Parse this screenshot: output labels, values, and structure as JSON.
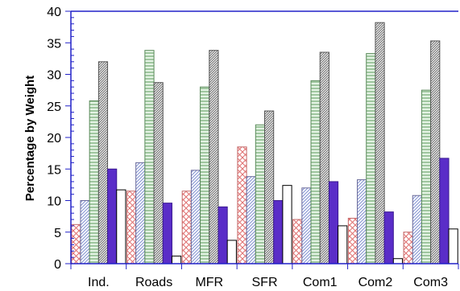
{
  "chart_data": {
    "type": "bar",
    "title": "",
    "xlabel": "",
    "ylabel": "Percentage by Weight",
    "ylim": [
      0,
      40
    ],
    "y_ticks": [
      0,
      5,
      10,
      15,
      20,
      25,
      30,
      35,
      40
    ],
    "categories": [
      "Ind.",
      "Roads",
      "MFR",
      "SFR",
      "Com1",
      "Com2",
      "Com3"
    ],
    "grid": false,
    "legend": "none",
    "series": [
      {
        "values": [
          6.2,
          11.5,
          11.5,
          18.5,
          7.0,
          7.2,
          5.0
        ],
        "fill": "#ffffff",
        "stroke": "#c46a6a",
        "pattern": "crosshatch",
        "pattern_color": "#e07070"
      },
      {
        "values": [
          10.0,
          16.0,
          14.8,
          13.8,
          12.0,
          13.3,
          10.8
        ],
        "fill": "#ffffff",
        "stroke": "#6a6a9a",
        "pattern": "diagonal",
        "pattern_color": "#7f8fd0"
      },
      {
        "values": [
          25.8,
          33.8,
          28.0,
          22.0,
          29.0,
          33.3,
          27.5
        ],
        "fill": "#e4f3e4",
        "stroke": "#5a8a5a",
        "pattern": "horizontal",
        "pattern_color": "#5a9a5a"
      },
      {
        "values": [
          32.0,
          28.7,
          33.8,
          24.2,
          33.5,
          38.2,
          35.3
        ],
        "fill": "#ffffff",
        "stroke": "#555555",
        "pattern": "diagonal-dense",
        "pattern_color": "#666666"
      },
      {
        "values": [
          15.0,
          9.6,
          9.0,
          10.0,
          13.0,
          8.2,
          16.7
        ],
        "fill": "#5a2dc8",
        "stroke": "#3a1a90",
        "pattern": "solid",
        "pattern_color": "#5a2dc8"
      },
      {
        "values": [
          11.7,
          1.2,
          3.7,
          12.4,
          6.0,
          0.8,
          5.5
        ],
        "fill": "#ffffff",
        "stroke": "#000000",
        "pattern": "none",
        "pattern_color": "#000000"
      }
    ],
    "colors": {
      "axis": "#2020c8",
      "text": "#000000"
    }
  }
}
